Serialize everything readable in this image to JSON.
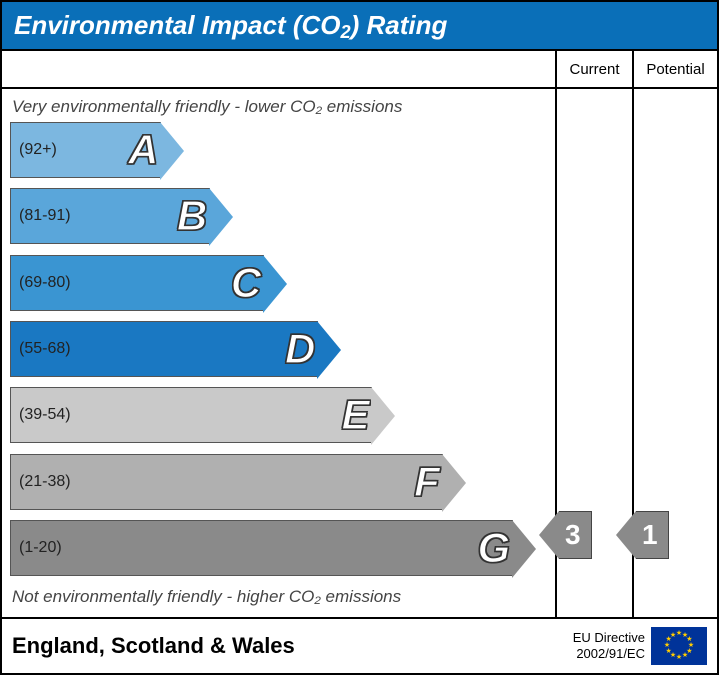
{
  "title_html": "Environmental Impact (CO<sub>2</sub>) Rating",
  "title_bg": "#0a6fb8",
  "columns": {
    "current": "Current",
    "potential": "Potential"
  },
  "caption_top": "Very environmentally friendly - lower CO₂ emissions",
  "caption_bottom": "Not environmentally friendly - higher CO₂ emissions",
  "bands": [
    {
      "letter": "A",
      "range": "(92+)",
      "color": "#7cb7e0",
      "width_pct": 28
    },
    {
      "letter": "B",
      "range": "(81-91)",
      "color": "#5aa6da",
      "width_pct": 37
    },
    {
      "letter": "C",
      "range": "(69-80)",
      "color": "#3a95d2",
      "width_pct": 47
    },
    {
      "letter": "D",
      "range": "(55-68)",
      "color": "#1a78c2",
      "width_pct": 57
    },
    {
      "letter": "E",
      "range": "(39-54)",
      "color": "#c9c9c9",
      "width_pct": 67
    },
    {
      "letter": "F",
      "range": "(21-38)",
      "color": "#b0b0b0",
      "width_pct": 80
    },
    {
      "letter": "G",
      "range": "(1-20)",
      "color": "#8a8a8a",
      "width_pct": 93
    }
  ],
  "band_row_height": 56,
  "band_gap": 8,
  "pointers": {
    "current": {
      "value": "3",
      "band_index": 6,
      "color": "#8a8a8a"
    },
    "potential": {
      "value": "1",
      "band_index": 6,
      "color": "#8a8a8a"
    }
  },
  "footer": {
    "region": "England, Scotland & Wales",
    "directive_line1": "EU Directive",
    "directive_line2": "2002/91/EC",
    "flag_bg": "#003399",
    "flag_star": "#ffcc00"
  }
}
